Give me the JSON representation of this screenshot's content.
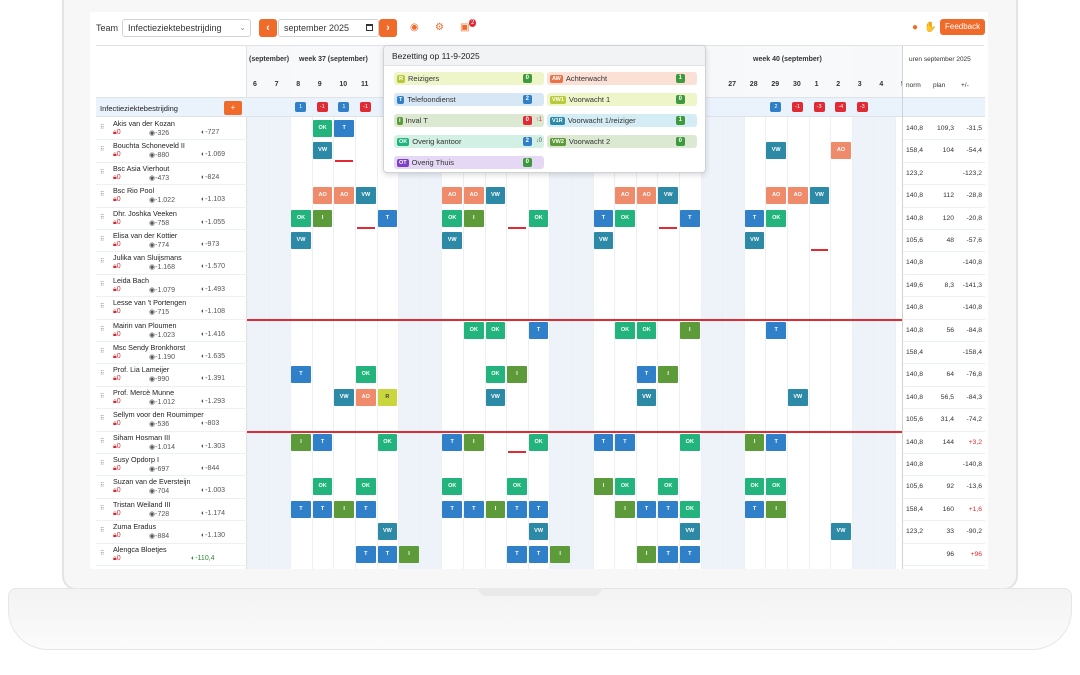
{
  "toolbar": {
    "team_label": "Team",
    "team_value": "Infectieziektebestrijding",
    "month_value": "september 2025",
    "prev_icon": "chevron-left-icon",
    "next_icon": "chevron-right-icon",
    "calendar_icon": "calendar-icon",
    "eye_icon": "eye-icon",
    "settings_icon": "settings-icon",
    "printer_icon": "printer-icon",
    "printer_badge": "2",
    "info_icon": "info-icon",
    "like_icon": "thumbs-up-icon",
    "feedback_label": "Feedback"
  },
  "header": {
    "week_partial": "(september)",
    "week37": "week 37 (september)",
    "week40": "week 40 (september)",
    "uren_header": "uren september 2025",
    "col_norm": "norm",
    "col_plan": "plan",
    "col_diff": "+/-"
  },
  "days_left": [
    "6",
    "7",
    "8",
    "9",
    "10",
    "11"
  ],
  "days_right": [
    "27",
    "28",
    "29",
    "30",
    "1",
    "2",
    "3",
    "4",
    "5"
  ],
  "team": {
    "name": "Infectieziektebestrijding",
    "badges_left": [
      {
        "t": "1",
        "c": "#2f80c8"
      },
      {
        "t": "-1",
        "c": "#e02b35"
      },
      {
        "t": "1",
        "c": "#2f80c8"
      },
      {
        "t": "-1",
        "c": "#e02b35"
      }
    ],
    "badges_right": [
      {
        "t": "2",
        "c": "#2f80c8"
      },
      {
        "t": "-1",
        "c": "#e02b35"
      },
      {
        "t": "-3",
        "c": "#e02b35"
      },
      {
        "t": "-4",
        "c": "#e02b35"
      },
      {
        "t": "-3",
        "c": "#e02b35"
      }
    ]
  },
  "popup": {
    "title": "Bezetting op 11-9-2025",
    "items": [
      {
        "abbr": "R",
        "abbr_color": "#b9c93a",
        "label": "Reizigers",
        "count": "0",
        "bg": "#eef5c9"
      },
      {
        "abbr": "AW",
        "abbr_color": "#e8744a",
        "label": "Achterwacht",
        "count": "1",
        "bg": "#fbe0d5"
      },
      {
        "abbr": "T",
        "abbr_color": "#2f80c8",
        "label": "Telefoondienst",
        "count": "2",
        "bg": "#d8e7f6"
      },
      {
        "abbr": "VW1",
        "abbr_color": "#b9c93a",
        "label": "Voorwacht 1",
        "count": "0",
        "bg": "#eef5c9"
      },
      {
        "abbr": "I",
        "abbr_color": "#5c9a3a",
        "label": "Inval T",
        "count": "0",
        "extra": "↑1",
        "bg": "#dbe9d2"
      },
      {
        "abbr": "V1R",
        "abbr_color": "#2c8aa6",
        "label": "Voorwacht 1/reiziger",
        "count": "1",
        "bg": "#d4ecf3"
      },
      {
        "abbr": "OK",
        "abbr_color": "#23b47e",
        "label": "Overig kantoor",
        "count": "2",
        "extra": "↓0",
        "bg": "#d2f0e4"
      },
      {
        "abbr": "VW2",
        "abbr_color": "#5c9a3a",
        "label": "Voorwacht 2",
        "count": "0",
        "bg": "#dbe9d2"
      },
      {
        "abbr": "OT",
        "abbr_color": "#7e3fc9",
        "label": "Overig Thuis",
        "count": "0",
        "bg": "#e4d8f5"
      }
    ]
  },
  "employees": [
    {
      "name": "Akis van der Kozan",
      "v1": "0",
      "v2": "-326",
      "v3": "-727",
      "norm": "140,8",
      "plan": "109,3",
      "diff": "-31,5"
    },
    {
      "name": "Bouchta Schoneveld II",
      "v1": "0",
      "v2": "-880",
      "v3": "-1.069",
      "norm": "158,4",
      "plan": "104",
      "diff": "-54,4"
    },
    {
      "name": "Bsc Asia Vierhout",
      "v1": "0",
      "v2": "-473",
      "v3": "-824",
      "norm": "123,2",
      "plan": "",
      "diff": "-123,2"
    },
    {
      "name": "Bsc Rio Pool",
      "v1": "0",
      "v2": "-1.022",
      "v3": "-1.103",
      "norm": "140,8",
      "plan": "112",
      "diff": "-28,8"
    },
    {
      "name": "Dhr. Joshka Veeken",
      "v1": "0",
      "v2": "-758",
      "v3": "-1.055",
      "norm": "140,8",
      "plan": "120",
      "diff": "-20,8"
    },
    {
      "name": "Elisa van der Kottier",
      "v1": "0",
      "v2": "-774",
      "v3": "-973",
      "norm": "105,6",
      "plan": "48",
      "diff": "-57,6"
    },
    {
      "name": "Julika van Sluijsmans",
      "v1": "0",
      "v2": "-1.168",
      "v3": "-1.570",
      "norm": "140,8",
      "plan": "",
      "diff": "-140,8"
    },
    {
      "name": "Leida Bach",
      "v1": "0",
      "v2": "-1.079",
      "v3": "-1.493",
      "norm": "149,6",
      "plan": "8,3",
      "diff": "-141,3"
    },
    {
      "name": "Lesse van 't Portengen",
      "v1": "0",
      "v2": "-715",
      "v3": "-1.108",
      "norm": "140,8",
      "plan": "",
      "diff": "-140,8"
    },
    {
      "name": "Mairin van Ploumen",
      "v1": "0",
      "v2": "-1.023",
      "v3": "-1.416",
      "norm": "140,8",
      "plan": "56",
      "diff": "-84,8"
    },
    {
      "name": "Msc Sendy Bronkhorst",
      "v1": "0",
      "v2": "-1.190",
      "v3": "-1.635",
      "norm": "158,4",
      "plan": "",
      "diff": "-158,4"
    },
    {
      "name": "Prof. Lia Lameijer",
      "v1": "0",
      "v2": "-990",
      "v3": "-1.391",
      "norm": "140,8",
      "plan": "64",
      "diff": "-76,8"
    },
    {
      "name": "Prof. Mercè Munne",
      "v1": "0",
      "v2": "-1.012",
      "v3": "-1.293",
      "norm": "140,8",
      "plan": "56,5",
      "diff": "-84,3"
    },
    {
      "name": "Sellym voor den Roumimper",
      "v1": "0",
      "v2": "-536",
      "v3": "-803",
      "norm": "105,6",
      "plan": "31,4",
      "diff": "-74,2"
    },
    {
      "name": "Siham Hosman III",
      "v1": "0",
      "v2": "-1.014",
      "v3": "-1.303",
      "norm": "140,8",
      "plan": "144",
      "diff": "+3,2"
    },
    {
      "name": "Susy Opdorp I",
      "v1": "0",
      "v2": "-697",
      "v3": "-844",
      "norm": "140,8",
      "plan": "",
      "diff": "-140,8"
    },
    {
      "name": "Suzan van de Eversteijn",
      "v1": "0",
      "v2": "-704",
      "v3": "-1.003",
      "norm": "105,6",
      "plan": "92",
      "diff": "-13,6"
    },
    {
      "name": "Tristan Weiland III",
      "v1": "0",
      "v2": "-728",
      "v3": "-1.174",
      "norm": "158,4",
      "plan": "160",
      "diff": "+1,6"
    },
    {
      "name": "Zuma Eradus",
      "v1": "0",
      "v2": "-884",
      "v3": "-1.130",
      "norm": "123,2",
      "plan": "33",
      "diff": "-90,2"
    },
    {
      "name": "Alengca Bloetjes",
      "v1": "0",
      "v2": "",
      "v3": "-110,4",
      "norm": "",
      "plan": "96",
      "diff": "+96"
    }
  ],
  "shift_colors": {
    "OK": "#23b47e",
    "T": "#2f80c8",
    "I": "#5c9a3a",
    "VW": "#2c8aa6",
    "AO": "#ef8a6a",
    "R": "#c9d63e",
    "red": "#e02b35"
  }
}
